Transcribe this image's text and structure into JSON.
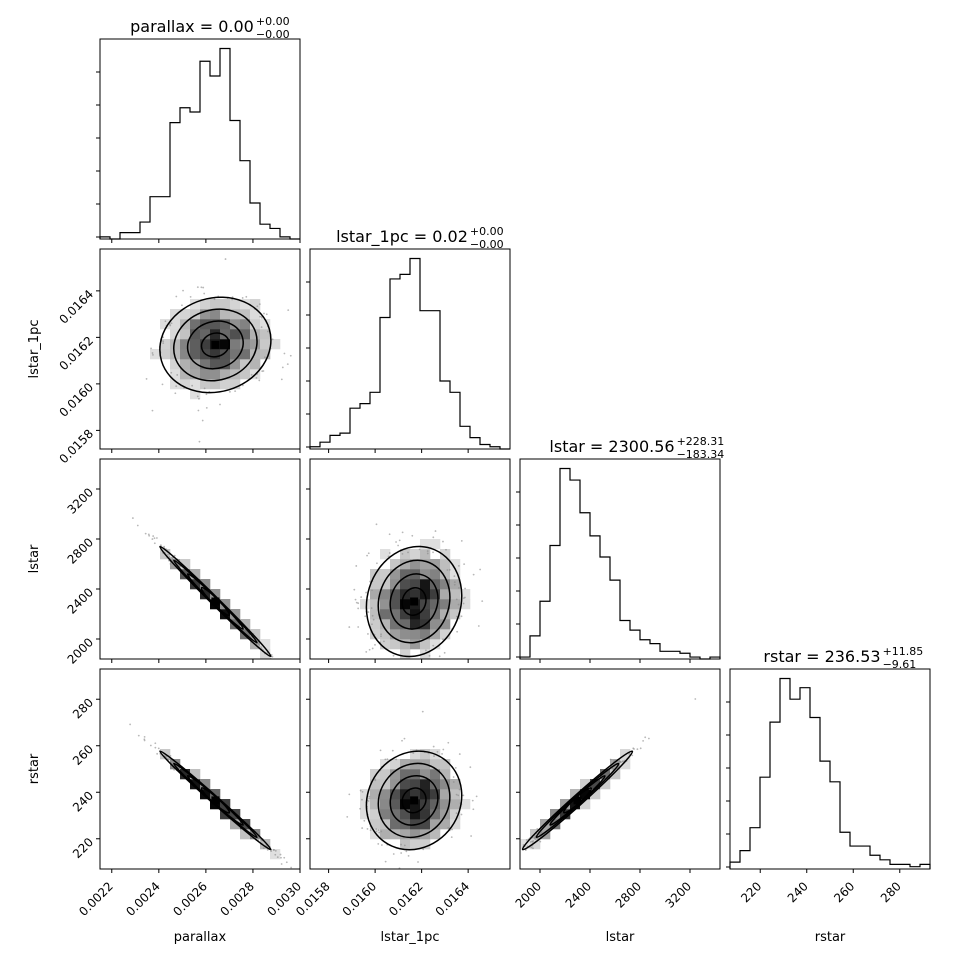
{
  "chart_data": {
    "type": "corner",
    "parameters": [
      "parallax",
      "lstar_1pc",
      "lstar",
      "rstar"
    ],
    "axis_labels": [
      "parallax",
      "lstar_1pc",
      "lstar",
      "rstar"
    ],
    "ranges": [
      [
        0.00215,
        0.003
      ],
      [
        0.01572,
        0.01658
      ],
      [
        1840,
        3440
      ],
      [
        207,
        293
      ]
    ],
    "ticks": [
      [
        "0.0022",
        "0.0024",
        "0.0026",
        "0.0028",
        "0.0030"
      ],
      [
        "0.0158",
        "0.0160",
        "0.0162",
        "0.0164"
      ],
      [
        "2000",
        "2400",
        "2800",
        "3200"
      ],
      [
        "220",
        "240",
        "260",
        "280"
      ]
    ],
    "tick_values": [
      [
        0.0022,
        0.0024,
        0.0026,
        0.0028,
        0.003
      ],
      [
        0.0158,
        0.016,
        0.0162,
        0.0164
      ],
      [
        2000,
        2400,
        2800,
        3200
      ],
      [
        220,
        240,
        260,
        280
      ]
    ],
    "titles": [
      {
        "main": "parallax = 0.00",
        "sup": "+0.00",
        "sub": "−0.00"
      },
      {
        "main": "lstar_1pc = 0.02",
        "sup": "+0.00",
        "sub": "−0.00"
      },
      {
        "main": "lstar = 2300.56",
        "sup": "+228.31",
        "sub": "−183.34"
      },
      {
        "main": "rstar = 236.53",
        "sup": "+11.85",
        "sub": "−9.61"
      }
    ],
    "histograms": [
      [
        1,
        0,
        3,
        3,
        8,
        20,
        20,
        55,
        62,
        60,
        84,
        77,
        90,
        56,
        37,
        17,
        7,
        5,
        1,
        0
      ],
      [
        1,
        3,
        6,
        7,
        18,
        20,
        25,
        58,
        75,
        77,
        84,
        61,
        61,
        30,
        25,
        10,
        5,
        2,
        1,
        0
      ],
      [
        1,
        12,
        30,
        59,
        99,
        93,
        76,
        64,
        53,
        41,
        20,
        15,
        10,
        8,
        4,
        4,
        3,
        1,
        0,
        1
      ],
      [
        3,
        8,
        18,
        40,
        64,
        83,
        74,
        79,
        66,
        47,
        38,
        16,
        10,
        10,
        6,
        4,
        2,
        2,
        1,
        2
      ]
    ],
    "correlations": [
      [
        1.0,
        0.1,
        -0.995,
        -0.995
      ],
      [
        0.1,
        1.0,
        0.1,
        0.1
      ],
      [
        -0.995,
        0.1,
        1.0,
        0.99
      ],
      [
        -0.995,
        0.1,
        0.99,
        1.0
      ]
    ],
    "means": [
      0.0026404,
      0.0161675,
      2300,
      236.5
    ],
    "sigmas": [
      0.000118,
      0.0001025,
      220,
      10.6
    ],
    "grid": false
  }
}
